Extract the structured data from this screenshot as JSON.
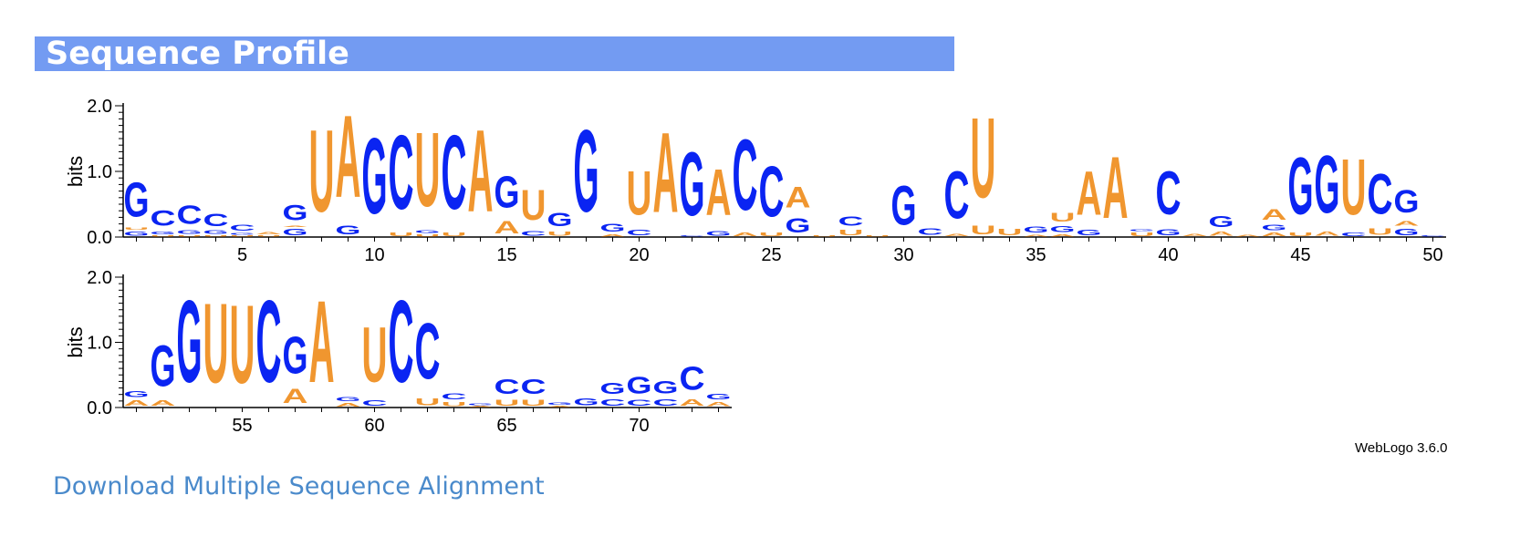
{
  "header": {
    "title": "Sequence Profile"
  },
  "colors": {
    "header_bg": "#739bf2",
    "A": "#f0962f",
    "U": "#f0962f",
    "G": "#0a24f2",
    "C": "#0a24f2",
    "link": "#4a8acb"
  },
  "chart_data": {
    "type": "sequence_logo",
    "alphabet": [
      "A",
      "C",
      "G",
      "U"
    ],
    "ylabel": "bits",
    "ylim": [
      0,
      2.0
    ],
    "yticks": [
      "0.0",
      "1.0",
      "2.0"
    ],
    "positions_range": [
      1,
      73
    ],
    "rows": [
      {
        "start": 1,
        "end": 50,
        "xticks": [
          5,
          10,
          15,
          20,
          25,
          30,
          35,
          40,
          45,
          50
        ]
      },
      {
        "start": 51,
        "end": 73,
        "xticks": [
          55,
          60,
          65,
          70
        ]
      }
    ],
    "columns": [
      [
        [
          "G",
          0.1
        ],
        [
          "U",
          0.05
        ],
        [
          "G",
          0.83
        ]
      ],
      [
        [
          "U",
          0.03
        ],
        [
          "G",
          0.07
        ],
        [
          "C",
          0.38
        ]
      ],
      [
        [
          "U",
          0.03
        ],
        [
          "G",
          0.08
        ],
        [
          "C",
          0.45
        ]
      ],
      [
        [
          "U",
          0.03
        ],
        [
          "G",
          0.08
        ],
        [
          "C",
          0.3
        ]
      ],
      [
        [
          "U",
          0.03
        ],
        [
          "G",
          0.04
        ],
        [
          "C",
          0.14
        ]
      ],
      [
        [
          "U",
          0.03
        ],
        [
          "A",
          0.06
        ]
      ],
      [
        [
          "G",
          0.15
        ],
        [
          "A",
          0.03
        ],
        [
          "G",
          0.38
        ]
      ],
      [
        [
          "U",
          2.0
        ]
      ],
      [
        [
          "G",
          0.22
        ],
        [
          "A",
          2.0
        ]
      ],
      [
        [
          "G",
          1.85
        ]
      ],
      [
        [
          "U",
          0.08
        ],
        [
          "C",
          1.8
        ]
      ],
      [
        [
          "U",
          0.05
        ],
        [
          "G",
          0.07
        ],
        [
          "U",
          1.8
        ]
      ],
      [
        [
          "U",
          0.08
        ],
        [
          "C",
          1.8
        ]
      ],
      [
        [
          "A",
          2.0
        ]
      ],
      [
        [
          "A",
          0.3
        ],
        [
          "G",
          0.76
        ]
      ],
      [
        [
          "C",
          0.12
        ],
        [
          "U",
          0.74
        ]
      ],
      [
        [
          "U",
          0.1
        ],
        [
          "G",
          0.33
        ]
      ],
      [
        [
          "G",
          2.0
        ]
      ],
      [
        [
          "A",
          0.05
        ],
        [
          "G",
          0.18
        ]
      ],
      [
        [
          "C",
          0.13
        ],
        [
          "U",
          1.07
        ]
      ],
      [
        [
          "A",
          1.95
        ]
      ],
      [
        [
          "C",
          0.03
        ],
        [
          "G",
          1.55
        ]
      ],
      [
        [
          "G",
          0.12
        ],
        [
          "A",
          1.13
        ]
      ],
      [
        [
          "A",
          0.08
        ],
        [
          "C",
          1.72
        ]
      ],
      [
        [
          "U",
          0.08
        ],
        [
          "C",
          1.23
        ]
      ],
      [
        [
          "G",
          0.35
        ],
        [
          "A",
          0.5
        ]
      ],
      [
        [
          "U",
          0.02
        ]
      ],
      [
        [
          "U",
          0.13
        ],
        [
          "C",
          0.23
        ]
      ],
      [
        [
          "U",
          0.03
        ]
      ],
      [
        [
          "G",
          0.95
        ]
      ],
      [
        [
          "C",
          0.16
        ]
      ],
      [
        [
          "A",
          0.06
        ],
        [
          "C",
          1.15
        ]
      ],
      [
        [
          "U",
          0.22
        ],
        [
          "U",
          1.95
        ]
      ],
      [
        [
          "U",
          0.15
        ]
      ],
      [
        [
          "A",
          0.04
        ],
        [
          "G",
          0.14
        ]
      ],
      [
        [
          "A",
          0.05
        ],
        [
          "G",
          0.14
        ],
        [
          "U",
          0.22
        ]
      ],
      [
        [
          "G",
          0.13
        ],
        [
          "A",
          1.07
        ]
      ],
      [
        [
          "A",
          1.5
        ]
      ],
      [
        [
          "U",
          0.08
        ],
        [
          "G",
          0.04
        ]
      ],
      [
        [
          "G",
          0.14
        ],
        [
          "C",
          1.05
        ]
      ],
      [
        [
          "A",
          0.06
        ]
      ],
      [
        [
          "A",
          0.1
        ],
        [
          "G",
          0.27
        ]
      ],
      [
        [
          "A",
          0.04
        ]
      ],
      [
        [
          "A",
          0.08
        ],
        [
          "G",
          0.13
        ],
        [
          "A",
          0.26
        ]
      ],
      [
        [
          "U",
          0.08
        ],
        [
          "G",
          1.38
        ]
      ],
      [
        [
          "A",
          0.1
        ],
        [
          "G",
          1.4
        ]
      ],
      [
        [
          "C",
          0.08
        ],
        [
          "U",
          1.35
        ]
      ],
      [
        [
          "U",
          0.16
        ],
        [
          "C",
          0.98
        ]
      ],
      [
        [
          "G",
          0.15
        ],
        [
          "A",
          0.12
        ],
        [
          "G",
          0.55
        ]
      ],
      [
        [
          "C",
          0.03
        ]
      ],
      [
        [
          "A",
          0.13
        ],
        [
          "G",
          0.14
        ]
      ],
      [
        [
          "A",
          0.13
        ],
        [
          "G",
          1.0
        ]
      ],
      [
        [
          "G",
          2.0
        ]
      ],
      [
        [
          "U",
          1.95
        ]
      ],
      [
        [
          "U",
          1.92
        ]
      ],
      [
        [
          "C",
          2.0
        ]
      ],
      [
        [
          "A",
          0.35
        ],
        [
          "G",
          0.9
        ]
      ],
      [
        [
          "A",
          2.0
        ]
      ],
      [
        [
          "A",
          0.08
        ],
        [
          "G",
          0.1
        ]
      ],
      [
        [
          "C",
          0.13
        ],
        [
          "U",
          1.35
        ]
      ],
      [
        [
          "C",
          2.0
        ]
      ],
      [
        [
          "U",
          0.18
        ],
        [
          "C",
          1.37
        ]
      ],
      [
        [
          "U",
          0.1
        ],
        [
          "C",
          0.14
        ]
      ],
      [
        [
          "A",
          0.03
        ],
        [
          "G",
          0.04
        ]
      ],
      [
        [
          "U",
          0.14
        ],
        [
          "C",
          0.36
        ]
      ],
      [
        [
          "U",
          0.14
        ],
        [
          "C",
          0.36
        ]
      ],
      [
        [
          "A",
          0.03
        ],
        [
          "G",
          0.05
        ]
      ],
      [
        [
          "G",
          0.17
        ]
      ],
      [
        [
          "C",
          0.16
        ],
        [
          "G",
          0.27
        ]
      ],
      [
        [
          "C",
          0.14
        ],
        [
          "G",
          0.4
        ]
      ],
      [
        [
          "C",
          0.16
        ],
        [
          "G",
          0.3
        ]
      ],
      [
        [
          "A",
          0.16
        ],
        [
          "C",
          0.56
        ]
      ],
      [
        [
          "A",
          0.1
        ],
        [
          "G",
          0.13
        ]
      ]
    ]
  },
  "footer": {
    "credit": "WebLogo 3.6.0",
    "download_label": "Download Multiple Sequence Alignment"
  }
}
